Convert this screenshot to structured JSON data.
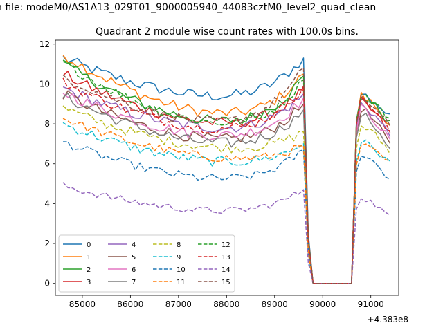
{
  "chart_data": {
    "type": "line",
    "suptitle": "n file: modeM0/AS1A13_029T01_9000005940_44083cztM0_level2_quad_clean",
    "title": "Quadrant 2 module wise count rates with 100.0s bins.",
    "xlabel": "",
    "ylabel": "",
    "offset_text": "+4.383e8",
    "x_offset": 438300000,
    "xlim": [
      84440,
      91580
    ],
    "ylim": [
      -0.6,
      12.2
    ],
    "xticks": [
      85000,
      86000,
      87000,
      88000,
      89000,
      90000,
      91000
    ],
    "xtick_labels": [
      "85000",
      "86000",
      "87000",
      "88000",
      "89000",
      "90000",
      "91000"
    ],
    "yticks": [
      0,
      2,
      4,
      6,
      8,
      10,
      12
    ],
    "ytick_labels": [
      "0",
      "2",
      "4",
      "6",
      "8",
      "10",
      "12"
    ],
    "grid": false,
    "legend_position": "lower-left",
    "x_start": 84600,
    "x_step": 100,
    "segments": [
      [
        0,
        50
      ],
      [
        61,
        68
      ]
    ],
    "series": [
      {
        "name": "0",
        "color": "#1f77b4",
        "dash": "solid",
        "start": 11.3,
        "mid": 9.0,
        "pre": 11.3,
        "post": 9.6,
        "end": 8.3,
        "amp": 0.28
      },
      {
        "name": "1",
        "color": "#ff7f0e",
        "dash": "solid",
        "start": 11.5,
        "mid": 8.0,
        "pre": 10.5,
        "post": 9.5,
        "end": 8.0,
        "amp": 0.28
      },
      {
        "name": "2",
        "color": "#2ca02c",
        "dash": "solid",
        "start": 11.0,
        "mid": 7.6,
        "pre": 10.4,
        "post": 9.5,
        "end": 8.0,
        "amp": 0.28
      },
      {
        "name": "3",
        "color": "#d62728",
        "dash": "solid",
        "start": 10.5,
        "mid": 7.6,
        "pre": 9.7,
        "post": 9.2,
        "end": 7.5,
        "amp": 0.28
      },
      {
        "name": "4",
        "color": "#9467bd",
        "dash": "solid",
        "start": 9.8,
        "mid": 7.4,
        "pre": 9.5,
        "post": 9.1,
        "end": 7.4,
        "amp": 0.28
      },
      {
        "name": "5",
        "color": "#8c564b",
        "dash": "solid",
        "start": 9.5,
        "mid": 6.8,
        "pre": 9.0,
        "post": 8.9,
        "end": 6.9,
        "amp": 0.28
      },
      {
        "name": "6",
        "color": "#e377c2",
        "dash": "solid",
        "start": 9.6,
        "mid": 7.0,
        "pre": 9.3,
        "post": 8.9,
        "end": 7.1,
        "amp": 0.28
      },
      {
        "name": "7",
        "color": "#7f7f7f",
        "dash": "solid",
        "start": 9.4,
        "mid": 6.6,
        "pre": 8.7,
        "post": 8.6,
        "end": 6.8,
        "amp": 0.28
      },
      {
        "name": "8",
        "color": "#bcbd22",
        "dash": "dashed",
        "start": 8.8,
        "mid": 6.5,
        "pre": 7.6,
        "post": 8.0,
        "end": 6.6,
        "amp": 0.25
      },
      {
        "name": "9",
        "color": "#17becf",
        "dash": "dashed",
        "start": 8.0,
        "mid": 5.8,
        "pre": 7.0,
        "post": 7.2,
        "end": 6.0,
        "amp": 0.25
      },
      {
        "name": "10",
        "color": "#1f77b4",
        "dash": "dashed",
        "start": 7.1,
        "mid": 4.9,
        "pre": 6.7,
        "post": 6.6,
        "end": 5.2,
        "amp": 0.22
      },
      {
        "name": "11",
        "color": "#ff7f0e",
        "dash": "dashed",
        "start": 8.3,
        "mid": 6.0,
        "pre": 6.9,
        "post": 7.0,
        "end": 6.0,
        "amp": 0.22
      },
      {
        "name": "12",
        "color": "#2ca02c",
        "dash": "dashed",
        "start": 11.1,
        "mid": 7.5,
        "pre": 10.2,
        "post": 9.6,
        "end": 8.2,
        "amp": 0.25
      },
      {
        "name": "13",
        "color": "#d62728",
        "dash": "dashed",
        "start": 10.1,
        "mid": 7.3,
        "pre": 9.9,
        "post": 9.4,
        "end": 7.6,
        "amp": 0.25
      },
      {
        "name": "14",
        "color": "#9467bd",
        "dash": "dashed",
        "start": 4.9,
        "mid": 3.4,
        "pre": 4.7,
        "post": 4.4,
        "end": 3.3,
        "amp": 0.18
      },
      {
        "name": "15",
        "color": "#8c564b",
        "dash": "dashed",
        "start": 10.4,
        "mid": 7.6,
        "pre": 10.8,
        "post": 9.4,
        "end": 7.8,
        "amp": 0.25
      }
    ]
  }
}
